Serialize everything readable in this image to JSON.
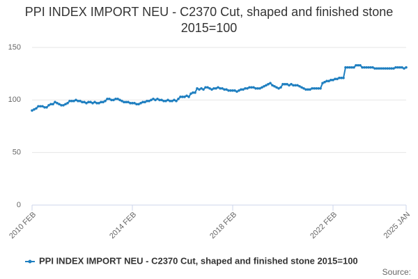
{
  "chart_data": {
    "type": "line",
    "title": "PPI INDEX IMPORT NEU - C2370 Cut, shaped and finished stone 2015=100",
    "source": "Source:",
    "categories": [
      "2010 FEB",
      null,
      null,
      null,
      null,
      null,
      null,
      null,
      null,
      null,
      null,
      null,
      null,
      null,
      null,
      null,
      null,
      null,
      null,
      null,
      null,
      null,
      null,
      null,
      null,
      null,
      null,
      null,
      null,
      null,
      null,
      null,
      null,
      null,
      null,
      null,
      null,
      null,
      null,
      null,
      null,
      null,
      null,
      null,
      null,
      null,
      null,
      null,
      "2014 FEB",
      null,
      null,
      null,
      null,
      null,
      null,
      null,
      null,
      null,
      null,
      null,
      null,
      null,
      null,
      null,
      null,
      null,
      null,
      null,
      null,
      null,
      null,
      null,
      null,
      null,
      null,
      null,
      null,
      null,
      null,
      null,
      null,
      null,
      null,
      null,
      null,
      null,
      null,
      null,
      null,
      null,
      null,
      null,
      null,
      null,
      null,
      null,
      "2018 FEB",
      null,
      null,
      null,
      null,
      null,
      null,
      null,
      null,
      null,
      null,
      null,
      null,
      null,
      null,
      null,
      null,
      null,
      null,
      null,
      null,
      null,
      null,
      null,
      null,
      null,
      null,
      null,
      null,
      null,
      null,
      null,
      null,
      null,
      null,
      null,
      null,
      null,
      null,
      null,
      null,
      null,
      null,
      null,
      null,
      null,
      null,
      null,
      "2022 FEB",
      null,
      null,
      null,
      null,
      null,
      null,
      null,
      null,
      null,
      null,
      null,
      null,
      null,
      null,
      null,
      null,
      null,
      null,
      null,
      null,
      null,
      null,
      null,
      null,
      null,
      null,
      null,
      null,
      null,
      null,
      null,
      null,
      null,
      null,
      "2025 JAN"
    ],
    "series": [
      {
        "name": "PPI INDEX IMPORT NEU - C2370 Cut, shaped and finished stone 2015=100",
        "color": "#1f7fc0",
        "values": [
          90,
          91,
          92,
          94,
          94,
          94,
          93,
          93,
          95,
          96,
          96,
          98,
          97,
          96,
          95,
          95,
          96,
          97,
          99,
          99,
          99,
          100,
          99,
          99,
          98,
          98,
          97,
          98,
          98,
          97,
          98,
          97,
          97,
          98,
          98,
          99,
          101,
          101,
          100,
          100,
          101,
          101,
          100,
          99,
          98,
          98,
          98,
          97,
          97,
          97,
          96,
          96,
          97,
          98,
          98,
          99,
          99,
          100,
          101,
          100,
          101,
          100,
          100,
          99,
          99,
          100,
          99,
          99,
          100,
          99,
          101,
          103,
          103,
          103,
          104,
          103,
          106,
          107,
          107,
          111,
          110,
          111,
          110,
          112,
          112,
          111,
          110,
          111,
          111,
          112,
          111,
          111,
          110,
          110,
          109,
          109,
          109,
          109,
          108,
          109,
          110,
          110,
          111,
          111,
          112,
          112,
          112,
          111,
          111,
          111,
          112,
          113,
          114,
          115,
          116,
          114,
          113,
          112,
          111,
          112,
          115,
          115,
          115,
          114,
          115,
          114,
          114,
          114,
          113,
          112,
          111,
          110,
          110,
          110,
          111,
          111,
          111,
          111,
          111,
          116,
          117,
          118,
          118,
          119,
          119,
          120,
          120,
          121,
          121,
          121,
          131,
          131,
          131,
          131,
          131,
          133,
          133,
          133,
          131,
          131,
          131,
          131,
          131,
          131,
          130,
          130,
          130,
          130,
          130,
          130,
          130,
          130,
          130,
          130,
          131,
          131,
          131,
          131,
          130,
          131
        ]
      }
    ],
    "ylim": [
      0,
      150
    ],
    "yticks": [
      0,
      50,
      100,
      150
    ],
    "grid": true,
    "legend": "bottom"
  }
}
